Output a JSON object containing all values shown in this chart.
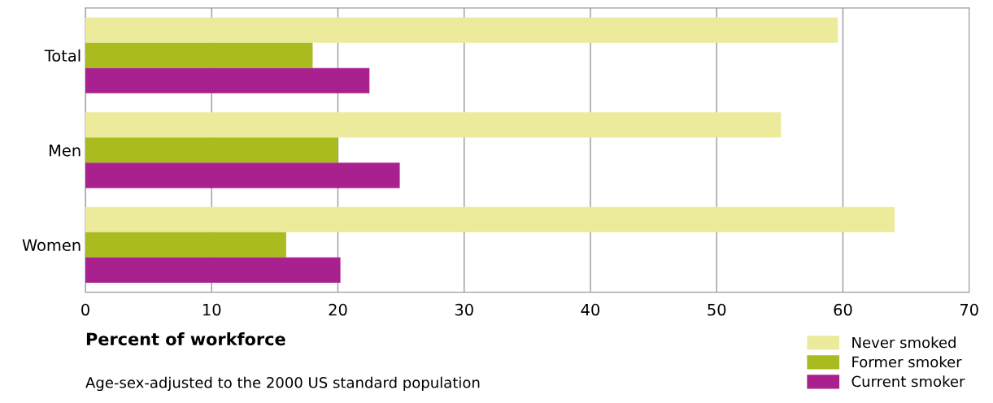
{
  "chart_data": {
    "type": "bar",
    "orientation": "horizontal",
    "xlabel": "Percent of workforce",
    "categories": [
      "Total",
      "Men",
      "Women"
    ],
    "series": [
      {
        "name": "Never smoked",
        "color": "#ebeb9b",
        "values": [
          59.6,
          55.1,
          64.1
        ]
      },
      {
        "name": "Former smoker",
        "color": "#a9bb1f",
        "values": [
          18.0,
          20.0,
          15.9
        ]
      },
      {
        "name": "Current smoker",
        "color": "#a8218e",
        "values": [
          22.5,
          24.9,
          20.2
        ]
      }
    ],
    "xlim": [
      0,
      70
    ],
    "xticks": [
      0,
      10,
      20,
      30,
      40,
      50,
      60,
      70
    ],
    "grid": "x",
    "legend": "bottom right",
    "annotations": [
      "Age-sex-adjusted to the 2000 US standard population"
    ]
  }
}
